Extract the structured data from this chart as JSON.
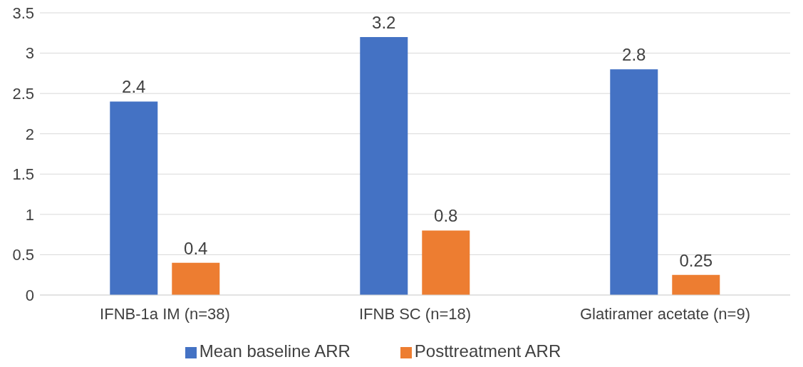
{
  "chart_data": {
    "type": "bar",
    "categories": [
      "IFNB-1a IM (n=38)",
      "IFNB SC (n=18)",
      "Glatiramer acetate (n=9)"
    ],
    "series": [
      {
        "name": "Mean baseline ARR",
        "color": "#4472c4",
        "values": [
          2.4,
          3.2,
          2.8
        ]
      },
      {
        "name": "Posttreatment ARR",
        "color": "#ed7d31",
        "values": [
          0.4,
          0.8,
          0.25
        ]
      }
    ],
    "ylim": [
      0,
      3.5
    ],
    "yticks": [
      0,
      0.5,
      1,
      1.5,
      2,
      2.5,
      3,
      3.5
    ],
    "grid": "y",
    "legend": "bottom",
    "data_labels": true
  }
}
